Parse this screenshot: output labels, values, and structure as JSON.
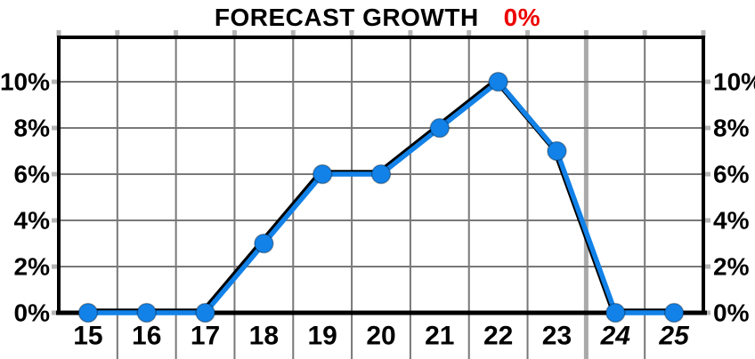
{
  "title": {
    "text": "FORECAST GROWTH",
    "highlight": "0%",
    "highlight_color": "#ee0000"
  },
  "chart_data": {
    "type": "line",
    "title": "FORECAST GROWTH 0%",
    "x_labels": [
      "15",
      "16",
      "17",
      "18",
      "19",
      "20",
      "21",
      "22",
      "23",
      "24",
      "25"
    ],
    "values": [
      0,
      0,
      0,
      3,
      6,
      6,
      8,
      10,
      7,
      0,
      0
    ],
    "series_name": "forecast-growth-percent",
    "y_tick_values": [
      0,
      2,
      4,
      6,
      8,
      10
    ],
    "y_tick_labels_left": [
      "0%",
      "2%",
      "4%",
      "6%",
      "8%",
      "10%"
    ],
    "y_tick_labels_right": [
      "0%",
      "2%",
      "4%",
      "6%",
      "8%",
      "10%"
    ],
    "ylim": [
      0,
      12
    ],
    "grid": true,
    "legend": false,
    "italic_x_labels": [
      "24",
      "25"
    ],
    "forecast_divider_before_label": "24",
    "colors": {
      "line": "#1282e8",
      "marker": "#1282e8",
      "line_shadow": "#000000",
      "grid": "#787878",
      "divider": "#a9a9a9",
      "tick": "#b5b5b5",
      "axis": "#000000",
      "title_text": "#000000",
      "title_highlight": "#ee0000"
    }
  }
}
